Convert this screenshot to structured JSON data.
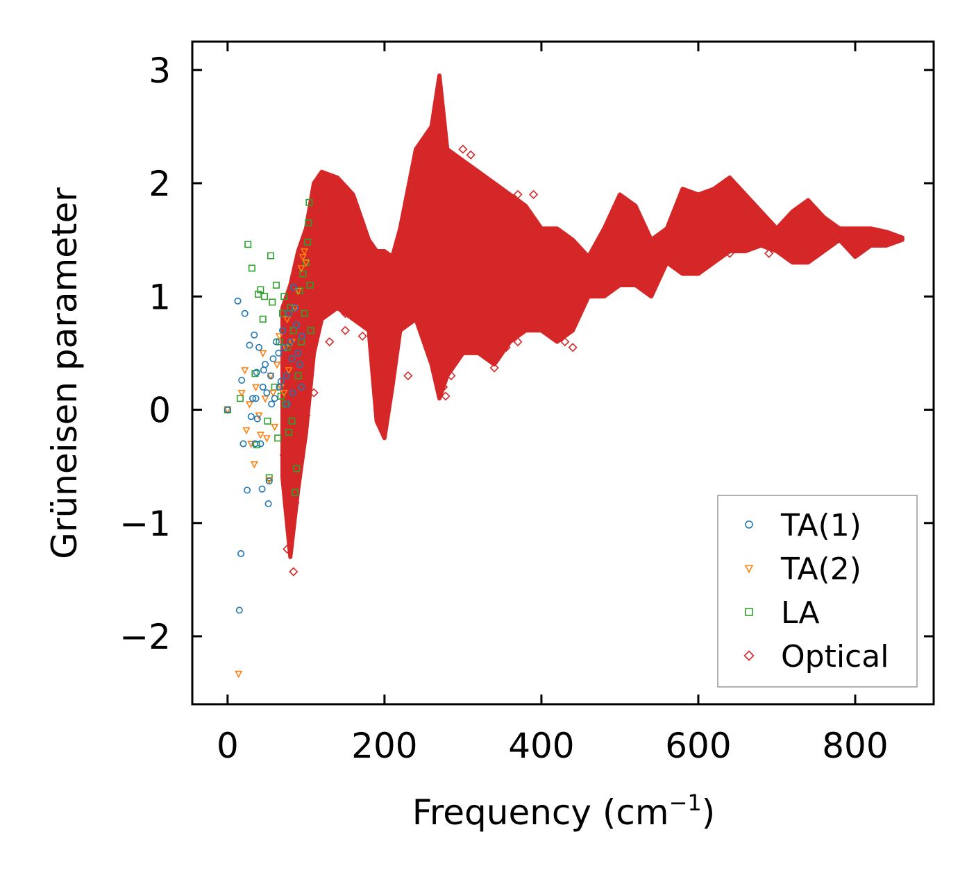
{
  "chart_data": {
    "type": "scatter",
    "title": "",
    "xlabel": "Frequency (cm",
    "xlabel_sup": "−1",
    "xlabel_close": ")",
    "ylabel": "Grüneisen parameter",
    "xlim": [
      -45,
      900
    ],
    "ylim": [
      -2.6,
      3.25
    ],
    "xticks": [
      {
        "value": 0,
        "label": "0"
      },
      {
        "value": 200,
        "label": "200"
      },
      {
        "value": 400,
        "label": "400"
      },
      {
        "value": 600,
        "label": "600"
      },
      {
        "value": 800,
        "label": "800"
      }
    ],
    "yticks": [
      {
        "value": -2,
        "label": "−2"
      },
      {
        "value": -1,
        "label": "−1"
      },
      {
        "value": 0,
        "label": "0"
      },
      {
        "value": 1,
        "label": "1"
      },
      {
        "value": 2,
        "label": "2"
      },
      {
        "value": 3,
        "label": "3"
      }
    ],
    "legend_position": "lower-right",
    "series": [
      {
        "name": "TA(1)",
        "marker": "circle",
        "color": "#1f77b4",
        "points": [
          [
            0,
            0
          ],
          [
            13,
            0.96
          ],
          [
            15,
            -1.77
          ],
          [
            17,
            -1.27
          ],
          [
            18,
            0.26
          ],
          [
            20,
            -0.3
          ],
          [
            22,
            0.85
          ],
          [
            25,
            -0.71
          ],
          [
            28,
            0.57
          ],
          [
            30,
            -0.06
          ],
          [
            32,
            0.1
          ],
          [
            34,
            0.66
          ],
          [
            35,
            -0.3
          ],
          [
            37,
            0.33
          ],
          [
            38,
            -0.08
          ],
          [
            40,
            0.55
          ],
          [
            42,
            -0.3
          ],
          [
            44,
            -0.7
          ],
          [
            45,
            0.2
          ],
          [
            48,
            0.4
          ],
          [
            50,
            0.15
          ],
          [
            52,
            -0.83
          ],
          [
            53,
            -0.63
          ],
          [
            55,
            0.3
          ],
          [
            58,
            0.45
          ],
          [
            60,
            0.1
          ],
          [
            62,
            0.6
          ],
          [
            65,
            0.5
          ],
          [
            68,
            0.25
          ],
          [
            70,
            0.7
          ],
          [
            72,
            0.55
          ],
          [
            75,
            0.3
          ],
          [
            78,
            0.85
          ],
          [
            80,
            0.6
          ],
          [
            82,
            0.45
          ],
          [
            84,
            1.08
          ],
          [
            86,
            0.9
          ],
          [
            88,
            0.75
          ],
          [
            90,
            0.5
          ],
          [
            92,
            0.4
          ],
          [
            94,
            0.2
          ],
          [
            95,
            0.65
          ],
          [
            83,
            0.15
          ],
          [
            76,
            0.05
          ],
          [
            66,
            0.2
          ],
          [
            56,
            0.05
          ],
          [
            46,
            0.35
          ],
          [
            36,
            0.1
          ]
        ]
      },
      {
        "name": "TA(2)",
        "marker": "triangle-down",
        "color": "#ff7f0e",
        "points": [
          [
            0,
            0
          ],
          [
            14,
            -2.33
          ],
          [
            18,
            0.15
          ],
          [
            22,
            0.35
          ],
          [
            24,
            -0.18
          ],
          [
            28,
            0.05
          ],
          [
            30,
            -0.3
          ],
          [
            34,
            -0.48
          ],
          [
            36,
            0.2
          ],
          [
            40,
            -0.05
          ],
          [
            42,
            -0.22
          ],
          [
            45,
            0.5
          ],
          [
            48,
            0.1
          ],
          [
            50,
            -0.25
          ],
          [
            53,
            -0.62
          ],
          [
            55,
            0.3
          ],
          [
            58,
            0.15
          ],
          [
            60,
            -0.15
          ],
          [
            63,
            0.4
          ],
          [
            66,
            0.65
          ],
          [
            68,
            0.2
          ],
          [
            72,
            0.15
          ],
          [
            74,
            0.55
          ],
          [
            76,
            0.8
          ],
          [
            78,
            0.35
          ],
          [
            82,
            0.6
          ],
          [
            86,
            0.9
          ],
          [
            90,
            1.05
          ],
          [
            94,
            1.25
          ],
          [
            96,
            1.35
          ],
          [
            98,
            1.4
          ],
          [
            100,
            1.3
          ]
        ]
      },
      {
        "name": "LA",
        "marker": "square",
        "color": "#2ca02c",
        "points": [
          [
            0,
            0
          ],
          [
            16,
            0.1
          ],
          [
            26,
            1.46
          ],
          [
            31,
            1.25
          ],
          [
            35,
            0.32
          ],
          [
            37,
            -0.31
          ],
          [
            39,
            1.02
          ],
          [
            42,
            1.06
          ],
          [
            45,
            0.8
          ],
          [
            47,
            1.0
          ],
          [
            51,
            -0.1
          ],
          [
            53,
            -0.6
          ],
          [
            55,
            1.36
          ],
          [
            57,
            0.95
          ],
          [
            60,
            0.2
          ],
          [
            62,
            1.1
          ],
          [
            64,
            -0.25
          ],
          [
            66,
            0.6
          ],
          [
            68,
            0.12
          ],
          [
            70,
            0.85
          ],
          [
            72,
            1.0
          ],
          [
            74,
            0.05
          ],
          [
            76,
            0.55
          ],
          [
            78,
            -0.2
          ],
          [
            80,
            0.9
          ],
          [
            82,
            -0.1
          ],
          [
            84,
            0.7
          ],
          [
            86,
            -0.73
          ],
          [
            88,
            -0.52
          ],
          [
            90,
            0.3
          ],
          [
            92,
            1.05
          ],
          [
            94,
            0.6
          ],
          [
            96,
            1.2
          ],
          [
            98,
            0.85
          ],
          [
            100,
            1.3
          ],
          [
            102,
            1.48
          ],
          [
            103,
            1.65
          ],
          [
            104,
            1.83
          ],
          [
            105,
            1.1
          ],
          [
            106,
            0.7
          ]
        ]
      },
      {
        "name": "Optical",
        "marker": "diamond",
        "color": "#d62728",
        "band": true,
        "envelope": [
          [
            70,
            -0.6,
            0.9
          ],
          [
            80,
            -1.3,
            1.1
          ],
          [
            90,
            -0.7,
            1.4
          ],
          [
            100,
            -0.2,
            1.6
          ],
          [
            110,
            0.5,
            2.0
          ],
          [
            120,
            0.8,
            2.1
          ],
          [
            140,
            0.9,
            2.05
          ],
          [
            160,
            0.8,
            1.9
          ],
          [
            180,
            0.7,
            1.5
          ],
          [
            190,
            -0.1,
            1.4
          ],
          [
            200,
            -0.25,
            1.4
          ],
          [
            210,
            0.2,
            1.35
          ],
          [
            220,
            0.7,
            1.6
          ],
          [
            240,
            0.8,
            2.3
          ],
          [
            260,
            0.4,
            2.5
          ],
          [
            270,
            0.1,
            2.95
          ],
          [
            280,
            0.3,
            2.3
          ],
          [
            300,
            0.5,
            2.2
          ],
          [
            320,
            0.5,
            2.1
          ],
          [
            340,
            0.4,
            2.0
          ],
          [
            360,
            0.6,
            1.9
          ],
          [
            380,
            0.7,
            1.8
          ],
          [
            400,
            0.7,
            1.6
          ],
          [
            420,
            0.6,
            1.6
          ],
          [
            440,
            0.7,
            1.5
          ],
          [
            460,
            1.0,
            1.35
          ],
          [
            480,
            1.0,
            1.6
          ],
          [
            500,
            1.1,
            1.9
          ],
          [
            520,
            1.1,
            1.8
          ],
          [
            540,
            1.0,
            1.5
          ],
          [
            560,
            1.3,
            1.6
          ],
          [
            580,
            1.2,
            1.95
          ],
          [
            600,
            1.2,
            1.9
          ],
          [
            620,
            1.3,
            1.95
          ],
          [
            640,
            1.4,
            2.05
          ],
          [
            660,
            1.4,
            1.9
          ],
          [
            680,
            1.45,
            1.75
          ],
          [
            700,
            1.4,
            1.6
          ],
          [
            720,
            1.3,
            1.75
          ],
          [
            740,
            1.3,
            1.85
          ],
          [
            760,
            1.4,
            1.7
          ],
          [
            780,
            1.5,
            1.6
          ],
          [
            800,
            1.35,
            1.6
          ],
          [
            820,
            1.45,
            1.6
          ],
          [
            840,
            1.45,
            1.57
          ],
          [
            860,
            1.5,
            1.52
          ]
        ],
        "outliers": [
          [
            72,
            -0.4
          ],
          [
            76,
            -1.23
          ],
          [
            80,
            -1.08
          ],
          [
            84,
            -1.43
          ],
          [
            86,
            -0.82
          ],
          [
            82,
            -0.65
          ],
          [
            78,
            -0.95
          ],
          [
            100,
            -0.05
          ],
          [
            110,
            0.15
          ],
          [
            130,
            0.6
          ],
          [
            150,
            0.7
          ],
          [
            168,
            0.8
          ],
          [
            172,
            0.65
          ],
          [
            230,
            0.3
          ],
          [
            265,
            0.6
          ],
          [
            275,
            0.2
          ],
          [
            278,
            0.12
          ],
          [
            285,
            0.3
          ],
          [
            310,
            0.55
          ],
          [
            320,
            0.52
          ],
          [
            340,
            0.37
          ],
          [
            355,
            0.55
          ],
          [
            370,
            0.6
          ],
          [
            400,
            0.8
          ],
          [
            420,
            0.65
          ],
          [
            440,
            0.55
          ],
          [
            430,
            0.6
          ],
          [
            455,
            1.0
          ],
          [
            520,
            1.22
          ],
          [
            640,
            1.38
          ],
          [
            690,
            1.38
          ],
          [
            150,
            0.85
          ],
          [
            360,
            1.75
          ],
          [
            370,
            1.9
          ],
          [
            390,
            1.9
          ],
          [
            300,
            2.3
          ],
          [
            310,
            2.25
          ]
        ]
      }
    ]
  }
}
